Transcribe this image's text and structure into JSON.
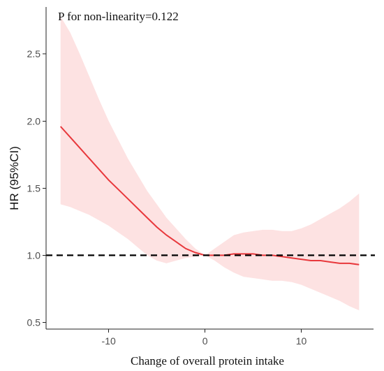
{
  "chart_data": {
    "type": "line",
    "annotation": "P for non-linearity=0.122",
    "xlabel": "Change of overall protein intake",
    "ylabel": "HR (95%CI)",
    "xlim": [
      -16.5,
      17.5
    ],
    "ylim": [
      0.45,
      2.85
    ],
    "xticks": [
      -10,
      0,
      10
    ],
    "xtick_labels": [
      "-10",
      "0",
      "10"
    ],
    "yticks": [
      0.5,
      1.0,
      1.5,
      2.0,
      2.5
    ],
    "ytick_labels": [
      "0.5",
      "1.0",
      "1.5",
      "2.0",
      "2.5"
    ],
    "grid": false,
    "reference_line": {
      "y": 1.0,
      "style": "dashed",
      "color": "#000000"
    },
    "series": [
      {
        "x": [
          -15,
          -14,
          -13,
          -12,
          -11,
          -10,
          -9,
          -8,
          -7,
          -6,
          -5,
          -4,
          -3,
          -2,
          -1,
          0,
          1,
          2,
          3,
          4,
          5,
          6,
          7,
          8,
          9,
          10,
          11,
          12,
          13,
          14,
          15,
          16
        ],
        "y": [
          1.96,
          1.88,
          1.8,
          1.72,
          1.64,
          1.56,
          1.49,
          1.42,
          1.35,
          1.28,
          1.21,
          1.15,
          1.1,
          1.05,
          1.02,
          1.0,
          1.0,
          1.0,
          1.01,
          1.01,
          1.01,
          1.0,
          1.0,
          0.99,
          0.98,
          0.97,
          0.96,
          0.96,
          0.95,
          0.94,
          0.94,
          0.93
        ],
        "lower": [
          1.38,
          1.36,
          1.33,
          1.3,
          1.26,
          1.22,
          1.17,
          1.12,
          1.06,
          1.0,
          0.96,
          0.94,
          0.96,
          0.98,
          0.99,
          1.0,
          0.96,
          0.91,
          0.87,
          0.84,
          0.83,
          0.82,
          0.81,
          0.81,
          0.8,
          0.78,
          0.75,
          0.72,
          0.69,
          0.66,
          0.62,
          0.59
        ],
        "upper": [
          2.78,
          2.66,
          2.5,
          2.33,
          2.16,
          2.0,
          1.86,
          1.72,
          1.6,
          1.48,
          1.38,
          1.28,
          1.2,
          1.12,
          1.05,
          1.0,
          1.05,
          1.1,
          1.15,
          1.17,
          1.18,
          1.19,
          1.19,
          1.18,
          1.18,
          1.2,
          1.23,
          1.27,
          1.31,
          1.35,
          1.4,
          1.46
        ]
      }
    ],
    "colors": {
      "line": "#e8383c",
      "band": "#fde2e2",
      "reference": "#000000",
      "axis": "#222222"
    }
  }
}
